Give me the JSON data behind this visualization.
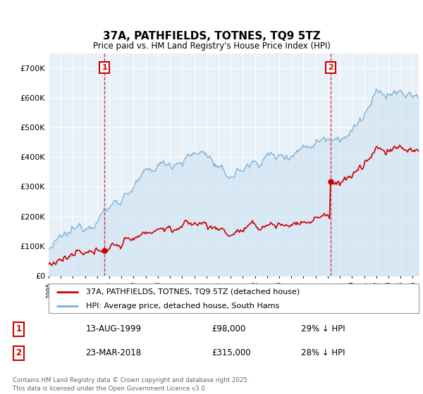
{
  "title": "37A, PATHFIELDS, TOTNES, TQ9 5TZ",
  "subtitle": "Price paid vs. HM Land Registry's House Price Index (HPI)",
  "legend_label_red": "37A, PATHFIELDS, TOTNES, TQ9 5TZ (detached house)",
  "legend_label_blue": "HPI: Average price, detached house, South Hams",
  "footer": "Contains HM Land Registry data © Crown copyright and database right 2025.\nThis data is licensed under the Open Government Licence v3.0.",
  "annotation1_date": "13-AUG-1999",
  "annotation1_price": "£98,000",
  "annotation1_hpi": "29% ↓ HPI",
  "annotation2_date": "23-MAR-2018",
  "annotation2_price": "£315,000",
  "annotation2_hpi": "28% ↓ HPI",
  "red_color": "#cc0000",
  "blue_color": "#7bafd4",
  "blue_fill": "#ddeeff",
  "chart_bg": "#e8f0f8",
  "vline_color": "#cc0000",
  "ann_box_color": "#cc0000",
  "ylim_min": 0,
  "ylim_max": 750000,
  "sale1_year": 1999.62,
  "sale1_price": 98000,
  "sale2_year": 2018.22,
  "sale2_price": 315000,
  "xmin": 1995.0,
  "xmax": 2025.5
}
